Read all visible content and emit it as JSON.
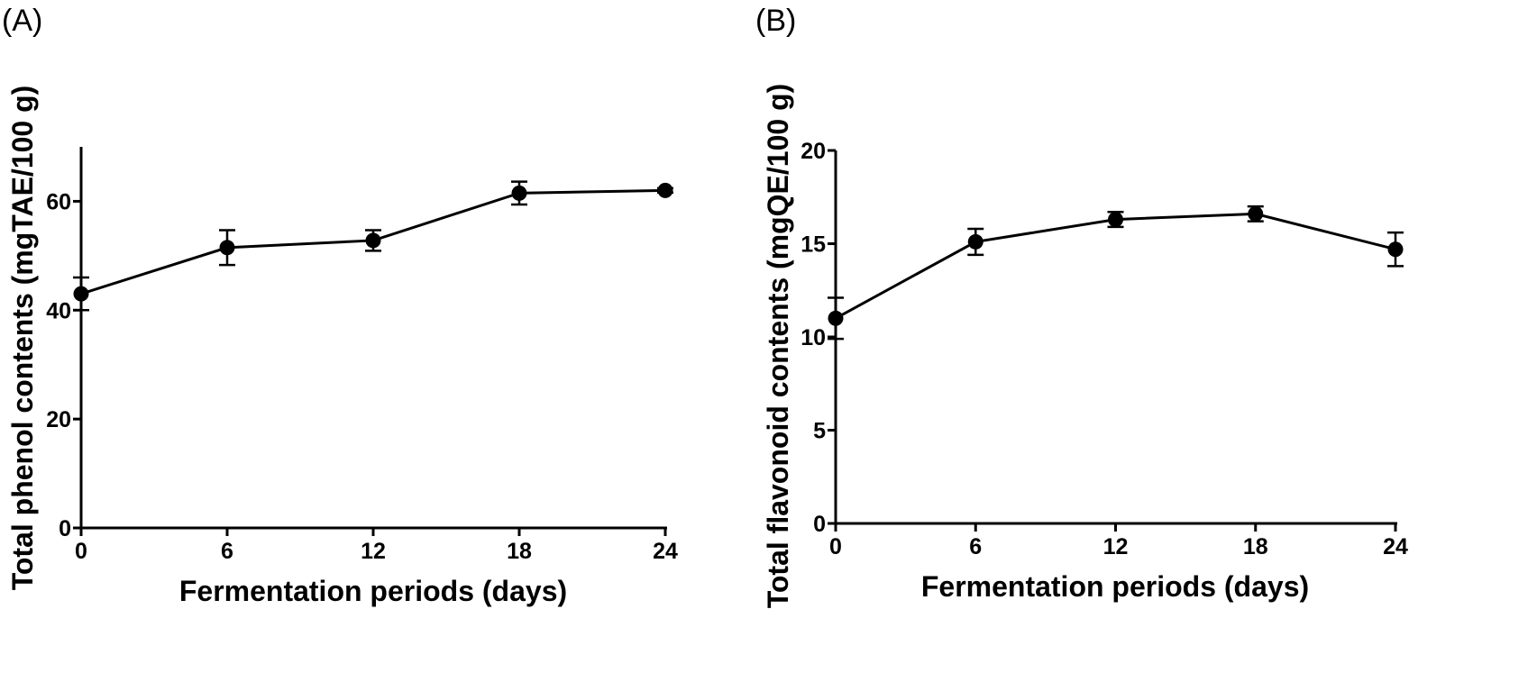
{
  "chart_data": [
    {
      "type": "line",
      "panel_label": "(A)",
      "xlabel": "Fermentation periods (days)",
      "ylabel": "Total phenol contents (mgTAE/100 g)",
      "x": [
        0,
        6,
        12,
        18,
        24
      ],
      "x_ticks": [
        "0",
        "6",
        "12",
        "18",
        "24"
      ],
      "xlim": [
        0,
        24
      ],
      "y_ticks": [
        "0",
        "20",
        "40",
        "60"
      ],
      "ylim": [
        0,
        70
      ],
      "grid": false,
      "marker": "filled-circle",
      "series": [
        {
          "values": [
            43.0,
            51.5,
            52.8,
            61.5,
            62.0
          ],
          "error": [
            3.0,
            3.2,
            1.9,
            2.1,
            0.4
          ]
        }
      ]
    },
    {
      "type": "line",
      "panel_label": "(B)",
      "xlabel": "Fermentation periods (days)",
      "ylabel": "Total flavonoid contents (mgQE/100 g)",
      "x": [
        0,
        6,
        12,
        18,
        24
      ],
      "x_ticks": [
        "0",
        "6",
        "12",
        "18",
        "24"
      ],
      "xlim": [
        0,
        24
      ],
      "y_ticks": [
        "0",
        "5",
        "10",
        "15",
        "20"
      ],
      "ylim": [
        0,
        20
      ],
      "grid": false,
      "marker": "filled-circle",
      "series": [
        {
          "values": [
            11.0,
            15.1,
            16.3,
            16.6,
            14.7
          ],
          "error": [
            1.1,
            0.7,
            0.4,
            0.4,
            0.9
          ]
        }
      ]
    }
  ]
}
